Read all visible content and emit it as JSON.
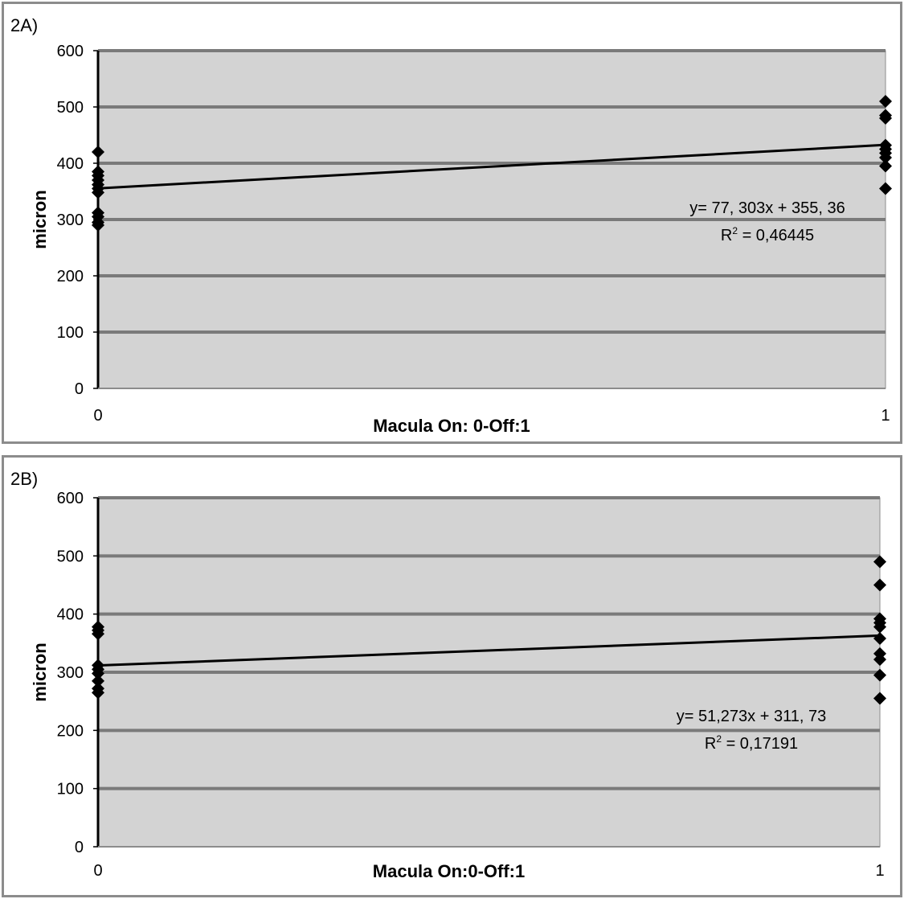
{
  "chart_data": [
    {
      "type": "scatter",
      "panel_label": "2A)",
      "xlabel": "Macula On: 0-Off:1",
      "ylabel": "micron",
      "ylim": [
        0,
        600
      ],
      "xlim": [
        0,
        1
      ],
      "y_ticks": [
        "0",
        "100",
        "200",
        "300",
        "400",
        "500",
        "600"
      ],
      "x_ticks": [
        "0",
        "1"
      ],
      "grid": "horizontal",
      "plot_background": "#d3d3d3",
      "series": [
        {
          "points": [
            {
              "x": 0,
              "y": 420
            },
            {
              "x": 0,
              "y": 385
            },
            {
              "x": 0,
              "y": 378
            },
            {
              "x": 0,
              "y": 370
            },
            {
              "x": 0,
              "y": 362
            },
            {
              "x": 0,
              "y": 355
            },
            {
              "x": 0,
              "y": 348
            },
            {
              "x": 0,
              "y": 312
            },
            {
              "x": 0,
              "y": 305
            },
            {
              "x": 0,
              "y": 295
            },
            {
              "x": 0,
              "y": 290
            },
            {
              "x": 1,
              "y": 510
            },
            {
              "x": 1,
              "y": 485
            },
            {
              "x": 1,
              "y": 480
            },
            {
              "x": 1,
              "y": 432
            },
            {
              "x": 1,
              "y": 425
            },
            {
              "x": 1,
              "y": 418
            },
            {
              "x": 1,
              "y": 410
            },
            {
              "x": 1,
              "y": 395
            },
            {
              "x": 1,
              "y": 355
            }
          ]
        }
      ],
      "trendline": {
        "slope": 77.303,
        "intercept": 355.36
      },
      "equation_text": "y= 77, 303x + 355, 36",
      "r2_label": "R",
      "r2_sup": "2",
      "r2_value": " = 0,46445"
    },
    {
      "type": "scatter",
      "panel_label": "2B)",
      "xlabel": "Macula On:0-Off:1",
      "ylabel": "micron",
      "ylim": [
        0,
        600
      ],
      "xlim": [
        0,
        1
      ],
      "y_ticks": [
        "0",
        "100",
        "200",
        "300",
        "400",
        "500",
        "600"
      ],
      "x_ticks": [
        "0",
        "1"
      ],
      "grid": "horizontal",
      "plot_background": "#d3d3d3",
      "series": [
        {
          "points": [
            {
              "x": 0,
              "y": 378
            },
            {
              "x": 0,
              "y": 372
            },
            {
              "x": 0,
              "y": 366
            },
            {
              "x": 0,
              "y": 312
            },
            {
              "x": 0,
              "y": 305
            },
            {
              "x": 0,
              "y": 298
            },
            {
              "x": 0,
              "y": 285
            },
            {
              "x": 0,
              "y": 272
            },
            {
              "x": 0,
              "y": 265
            },
            {
              "x": 1,
              "y": 490
            },
            {
              "x": 1,
              "y": 450
            },
            {
              "x": 1,
              "y": 392
            },
            {
              "x": 1,
              "y": 385
            },
            {
              "x": 1,
              "y": 378
            },
            {
              "x": 1,
              "y": 358
            },
            {
              "x": 1,
              "y": 332
            },
            {
              "x": 1,
              "y": 322
            },
            {
              "x": 1,
              "y": 295
            },
            {
              "x": 1,
              "y": 255
            }
          ]
        }
      ],
      "trendline": {
        "slope": 51.273,
        "intercept": 311.73
      },
      "equation_text": "y= 51,273x + 311, 73",
      "r2_label": "R",
      "r2_sup": "2",
      "r2_value": " = 0,17191"
    }
  ]
}
